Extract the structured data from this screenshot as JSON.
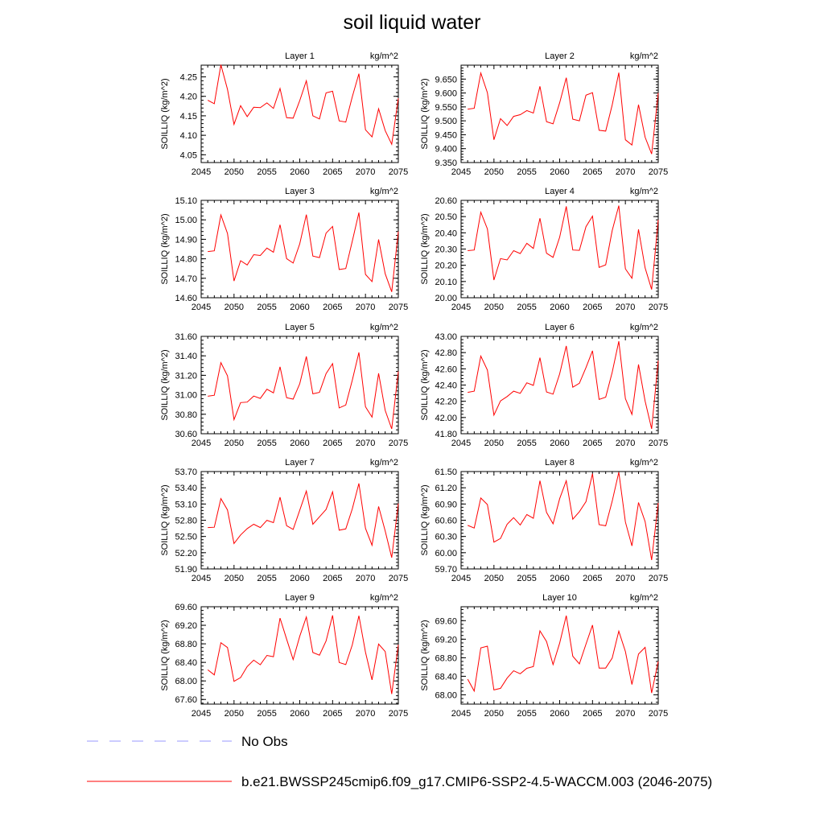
{
  "title": "soil liquid water",
  "colors": {
    "model_line": "#ff0000",
    "obs_line": "#9999ff",
    "axis": "#000000"
  },
  "legend": {
    "obs_label": "No Obs",
    "model_label": "b.e21.BWSSP245cmip6.f09_g17.CMIP6-SSP2-4.5-WACCM.003 (2046-2075)"
  },
  "chart_data": [
    {
      "type": "line",
      "title": "Layer 1",
      "units": "kg/m^2",
      "ylabel": "SOILLIQ  (kg/m^2)",
      "xlim": [
        2045,
        2075
      ],
      "ylim": [
        4.03,
        4.28
      ],
      "xticks": [
        2045,
        2050,
        2055,
        2060,
        2065,
        2070,
        2075
      ],
      "yticks": [
        "4.05",
        "4.10",
        "4.15",
        "4.20",
        "4.25"
      ],
      "ytick_values": [
        4.05,
        4.1,
        4.15,
        4.2,
        4.25
      ],
      "x": [
        2046,
        2047,
        2048,
        2049,
        2050,
        2051,
        2052,
        2053,
        2054,
        2055,
        2056,
        2057,
        2058,
        2059,
        2060,
        2061,
        2062,
        2063,
        2064,
        2065,
        2066,
        2067,
        2068,
        2069,
        2070,
        2071,
        2072,
        2073,
        2074,
        2075
      ],
      "values": [
        4.19,
        4.181,
        4.281,
        4.218,
        4.128,
        4.176,
        4.148,
        4.172,
        4.171,
        4.183,
        4.169,
        4.22,
        4.145,
        4.144,
        4.189,
        4.24,
        4.15,
        4.142,
        4.209,
        4.213,
        4.137,
        4.134,
        4.199,
        4.258,
        4.114,
        4.096,
        4.168,
        4.112,
        4.077,
        4.195
      ]
    },
    {
      "type": "line",
      "title": "Layer 2",
      "units": "kg/m^2",
      "ylabel": "SOILLIQ  (kg/m^2)",
      "xlim": [
        2045,
        2075
      ],
      "ylim": [
        9.35,
        9.7
      ],
      "xticks": [
        2045,
        2050,
        2055,
        2060,
        2065,
        2070,
        2075
      ],
      "yticks": [
        "9.350",
        "9.400",
        "9.450",
        "9.500",
        "9.550",
        "9.600",
        "9.650"
      ],
      "ytick_values": [
        9.35,
        9.4,
        9.45,
        9.5,
        9.55,
        9.6,
        9.65
      ],
      "x": [
        2046,
        2047,
        2048,
        2049,
        2050,
        2051,
        2052,
        2053,
        2054,
        2055,
        2056,
        2057,
        2058,
        2059,
        2060,
        2061,
        2062,
        2063,
        2064,
        2065,
        2066,
        2067,
        2068,
        2069,
        2070,
        2071,
        2072,
        2073,
        2074,
        2075
      ],
      "values": [
        9.542,
        9.545,
        9.672,
        9.601,
        9.432,
        9.508,
        9.483,
        9.516,
        9.522,
        9.537,
        9.528,
        9.624,
        9.497,
        9.489,
        9.565,
        9.655,
        9.506,
        9.5,
        9.592,
        9.601,
        9.466,
        9.463,
        9.557,
        9.673,
        9.432,
        9.413,
        9.558,
        9.441,
        9.381,
        9.6
      ]
    },
    {
      "type": "line",
      "title": "Layer 3",
      "units": "kg/m^2",
      "ylabel": "SOILLIQ  (kg/m^2)",
      "xlim": [
        2045,
        2075
      ],
      "ylim": [
        14.6,
        15.1
      ],
      "xticks": [
        2045,
        2050,
        2055,
        2060,
        2065,
        2070,
        2075
      ],
      "yticks": [
        "14.60",
        "14.70",
        "14.80",
        "14.90",
        "15.00",
        "15.10"
      ],
      "ytick_values": [
        14.6,
        14.7,
        14.8,
        14.9,
        15.0,
        15.1
      ],
      "x": [
        2046,
        2047,
        2048,
        2049,
        2050,
        2051,
        2052,
        2053,
        2054,
        2055,
        2056,
        2057,
        2058,
        2059,
        2060,
        2061,
        2062,
        2063,
        2064,
        2065,
        2066,
        2067,
        2068,
        2069,
        2070,
        2071,
        2072,
        2073,
        2074,
        2075
      ],
      "values": [
        14.837,
        14.841,
        15.025,
        14.93,
        14.686,
        14.79,
        14.768,
        14.821,
        14.817,
        14.855,
        14.834,
        14.975,
        14.801,
        14.778,
        14.877,
        15.027,
        14.814,
        14.806,
        14.932,
        14.966,
        14.745,
        14.75,
        14.89,
        15.037,
        14.72,
        14.683,
        14.899,
        14.723,
        14.63,
        14.94
      ]
    },
    {
      "type": "line",
      "title": "Layer 4",
      "units": "kg/m^2",
      "ylabel": "SOILLIQ  (kg/m^2)",
      "xlim": [
        2045,
        2075
      ],
      "ylim": [
        20.0,
        20.6
      ],
      "xticks": [
        2045,
        2050,
        2055,
        2060,
        2065,
        2070,
        2075
      ],
      "yticks": [
        "20.00",
        "20.10",
        "20.20",
        "20.30",
        "20.40",
        "20.50",
        "20.60"
      ],
      "ytick_values": [
        20.0,
        20.1,
        20.2,
        20.3,
        20.4,
        20.5,
        20.6
      ],
      "x": [
        2046,
        2047,
        2048,
        2049,
        2050,
        2051,
        2052,
        2053,
        2054,
        2055,
        2056,
        2057,
        2058,
        2059,
        2060,
        2061,
        2062,
        2063,
        2064,
        2065,
        2066,
        2067,
        2068,
        2069,
        2070,
        2071,
        2072,
        2073,
        2074,
        2075
      ],
      "values": [
        20.29,
        20.294,
        20.527,
        20.424,
        20.109,
        20.241,
        20.233,
        20.29,
        20.272,
        20.335,
        20.304,
        20.49,
        20.274,
        20.249,
        20.373,
        20.563,
        20.294,
        20.292,
        20.438,
        20.503,
        20.187,
        20.203,
        20.414,
        20.568,
        20.178,
        20.12,
        20.421,
        20.184,
        20.051,
        20.48
      ]
    },
    {
      "type": "line",
      "title": "Layer 5",
      "units": "kg/m^2",
      "ylabel": "SOILLIQ  (kg/m^2)",
      "xlim": [
        2045,
        2075
      ],
      "ylim": [
        30.6,
        31.6
      ],
      "xticks": [
        2045,
        2050,
        2055,
        2060,
        2065,
        2070,
        2075
      ],
      "yticks": [
        "30.60",
        "30.80",
        "31.00",
        "31.20",
        "31.40",
        "31.60"
      ],
      "ytick_values": [
        30.6,
        30.8,
        31.0,
        31.2,
        31.4,
        31.6
      ],
      "x": [
        2046,
        2047,
        2048,
        2049,
        2050,
        2051,
        2052,
        2053,
        2054,
        2055,
        2056,
        2057,
        2058,
        2059,
        2060,
        2061,
        2062,
        2063,
        2064,
        2065,
        2066,
        2067,
        2068,
        2069,
        2070,
        2071,
        2072,
        2073,
        2074,
        2075
      ],
      "values": [
        30.985,
        30.995,
        31.33,
        31.195,
        30.745,
        30.92,
        30.925,
        30.987,
        30.963,
        31.057,
        31.02,
        31.287,
        30.97,
        30.955,
        31.113,
        31.393,
        31.01,
        31.025,
        31.217,
        31.32,
        30.865,
        30.895,
        31.15,
        31.435,
        30.877,
        30.77,
        31.22,
        30.84,
        30.65,
        31.24
      ]
    },
    {
      "type": "line",
      "title": "Layer 6",
      "units": "kg/m^2",
      "ylabel": "SOILLIQ  (kg/m^2)",
      "xlim": [
        2045,
        2075
      ],
      "ylim": [
        41.8,
        43.0
      ],
      "xticks": [
        2045,
        2050,
        2055,
        2060,
        2065,
        2070,
        2075
      ],
      "yticks": [
        "41.80",
        "42.00",
        "42.20",
        "42.40",
        "42.60",
        "42.80",
        "43.00"
      ],
      "ytick_values": [
        41.8,
        42.0,
        42.2,
        42.4,
        42.6,
        42.8,
        43.0
      ],
      "x": [
        2046,
        2047,
        2048,
        2049,
        2050,
        2051,
        2052,
        2053,
        2054,
        2055,
        2056,
        2057,
        2058,
        2059,
        2060,
        2061,
        2062,
        2063,
        2064,
        2065,
        2066,
        2067,
        2068,
        2069,
        2070,
        2071,
        2072,
        2073,
        2074,
        2075
      ],
      "values": [
        42.31,
        42.325,
        42.757,
        42.584,
        42.029,
        42.205,
        42.258,
        42.325,
        42.298,
        42.428,
        42.396,
        42.737,
        42.315,
        42.288,
        42.538,
        42.882,
        42.373,
        42.422,
        42.615,
        42.822,
        42.223,
        42.25,
        42.558,
        42.94,
        42.232,
        42.038,
        42.653,
        42.202,
        41.86,
        42.7
      ]
    },
    {
      "type": "line",
      "title": "Layer 7",
      "units": "kg/m^2",
      "ylabel": "SOILLIQ  (kg/m^2)",
      "xlim": [
        2045,
        2075
      ],
      "ylim": [
        51.9,
        53.7
      ],
      "xticks": [
        2045,
        2050,
        2055,
        2060,
        2065,
        2070,
        2075
      ],
      "yticks": [
        "51.90",
        "52.20",
        "52.50",
        "52.80",
        "53.10",
        "53.40",
        "53.70"
      ],
      "ytick_values": [
        51.9,
        52.2,
        52.5,
        52.8,
        53.1,
        53.4,
        53.7
      ],
      "x": [
        2046,
        2047,
        2048,
        2049,
        2050,
        2051,
        2052,
        2053,
        2054,
        2055,
        2056,
        2057,
        2058,
        2059,
        2060,
        2061,
        2062,
        2063,
        2064,
        2065,
        2066,
        2067,
        2068,
        2069,
        2070,
        2071,
        2072,
        2073,
        2074,
        2075
      ],
      "values": [
        52.665,
        52.67,
        53.2,
        52.99,
        52.37,
        52.528,
        52.645,
        52.725,
        52.665,
        52.798,
        52.755,
        53.225,
        52.699,
        52.63,
        52.984,
        53.34,
        52.726,
        52.863,
        53.0,
        53.325,
        52.615,
        52.64,
        53.01,
        53.48,
        52.65,
        52.338,
        53.055,
        52.601,
        52.108,
        53.11
      ]
    },
    {
      "type": "line",
      "title": "Layer 8",
      "units": "kg/m^2",
      "ylabel": "SOILLIQ  (kg/m^2)",
      "xlim": [
        2045,
        2075
      ],
      "ylim": [
        59.7,
        61.5
      ],
      "xticks": [
        2045,
        2050,
        2055,
        2060,
        2065,
        2070,
        2075
      ],
      "yticks": [
        "59.70",
        "60.00",
        "60.30",
        "60.60",
        "60.90",
        "61.20",
        "61.50"
      ],
      "ytick_values": [
        59.7,
        60.0,
        60.3,
        60.6,
        60.9,
        61.2,
        61.5
      ],
      "x": [
        2046,
        2047,
        2048,
        2049,
        2050,
        2051,
        2052,
        2053,
        2054,
        2055,
        2056,
        2057,
        2058,
        2059,
        2060,
        2061,
        2062,
        2063,
        2064,
        2065,
        2066,
        2067,
        2068,
        2069,
        2070,
        2071,
        2072,
        2073,
        2074,
        2075
      ],
      "values": [
        60.505,
        60.455,
        61.01,
        60.89,
        60.195,
        60.262,
        60.525,
        60.648,
        60.512,
        60.706,
        60.635,
        61.33,
        60.745,
        60.535,
        60.998,
        61.33,
        60.62,
        60.758,
        60.943,
        61.46,
        60.518,
        60.498,
        60.953,
        61.488,
        60.568,
        60.125,
        60.928,
        60.575,
        59.865,
        60.92
      ]
    },
    {
      "type": "line",
      "title": "Layer 9",
      "units": "kg/m^2",
      "ylabel": "SOILLIQ  (kg/m^2)",
      "xlim": [
        2045,
        2075
      ],
      "ylim": [
        67.5,
        69.6
      ],
      "xticks": [
        2045,
        2050,
        2055,
        2060,
        2065,
        2070,
        2075
      ],
      "yticks": [
        "67.60",
        "68.00",
        "68.40",
        "68.80",
        "69.20",
        "69.60"
      ],
      "ytick_values": [
        67.6,
        68.0,
        68.4,
        68.8,
        69.2,
        69.6
      ],
      "x": [
        2046,
        2047,
        2048,
        2049,
        2050,
        2051,
        2052,
        2053,
        2054,
        2055,
        2056,
        2057,
        2058,
        2059,
        2060,
        2061,
        2062,
        2063,
        2064,
        2065,
        2066,
        2067,
        2068,
        2069,
        2070,
        2071,
        2072,
        2073,
        2074,
        2075
      ],
      "values": [
        68.24,
        68.13,
        68.825,
        68.72,
        67.992,
        68.072,
        68.31,
        68.448,
        68.348,
        68.55,
        68.523,
        69.355,
        68.9,
        68.46,
        68.963,
        69.38,
        68.613,
        68.555,
        68.86,
        69.415,
        68.398,
        68.353,
        68.778,
        69.405,
        68.62,
        68.023,
        68.795,
        68.633,
        67.718,
        68.78
      ]
    },
    {
      "type": "line",
      "title": "Layer 10",
      "units": "kg/m^2",
      "ylabel": "SOILLIQ  (kg/m^2)",
      "xlim": [
        2045,
        2075
      ],
      "ylim": [
        67.8,
        69.9
      ],
      "xticks": [
        2045,
        2050,
        2055,
        2060,
        2065,
        2070,
        2075
      ],
      "yticks": [
        "68.00",
        "68.40",
        "68.80",
        "69.20",
        "69.60"
      ],
      "ytick_values": [
        68.0,
        68.4,
        68.8,
        69.2,
        69.6
      ],
      "x": [
        2046,
        2047,
        2048,
        2049,
        2050,
        2051,
        2052,
        2053,
        2054,
        2055,
        2056,
        2057,
        2058,
        2059,
        2060,
        2061,
        2062,
        2063,
        2064,
        2065,
        2066,
        2067,
        2068,
        2069,
        2070,
        2071,
        2072,
        2073,
        2074,
        2075
      ],
      "values": [
        68.338,
        68.082,
        69.013,
        69.05,
        68.105,
        68.14,
        68.36,
        68.518,
        68.455,
        68.573,
        68.61,
        69.38,
        69.15,
        68.652,
        69.116,
        69.708,
        68.833,
        68.668,
        69.093,
        69.504,
        68.575,
        68.578,
        68.793,
        69.375,
        68.935,
        68.222,
        68.88,
        69.024,
        68.04,
        68.72
      ]
    }
  ]
}
